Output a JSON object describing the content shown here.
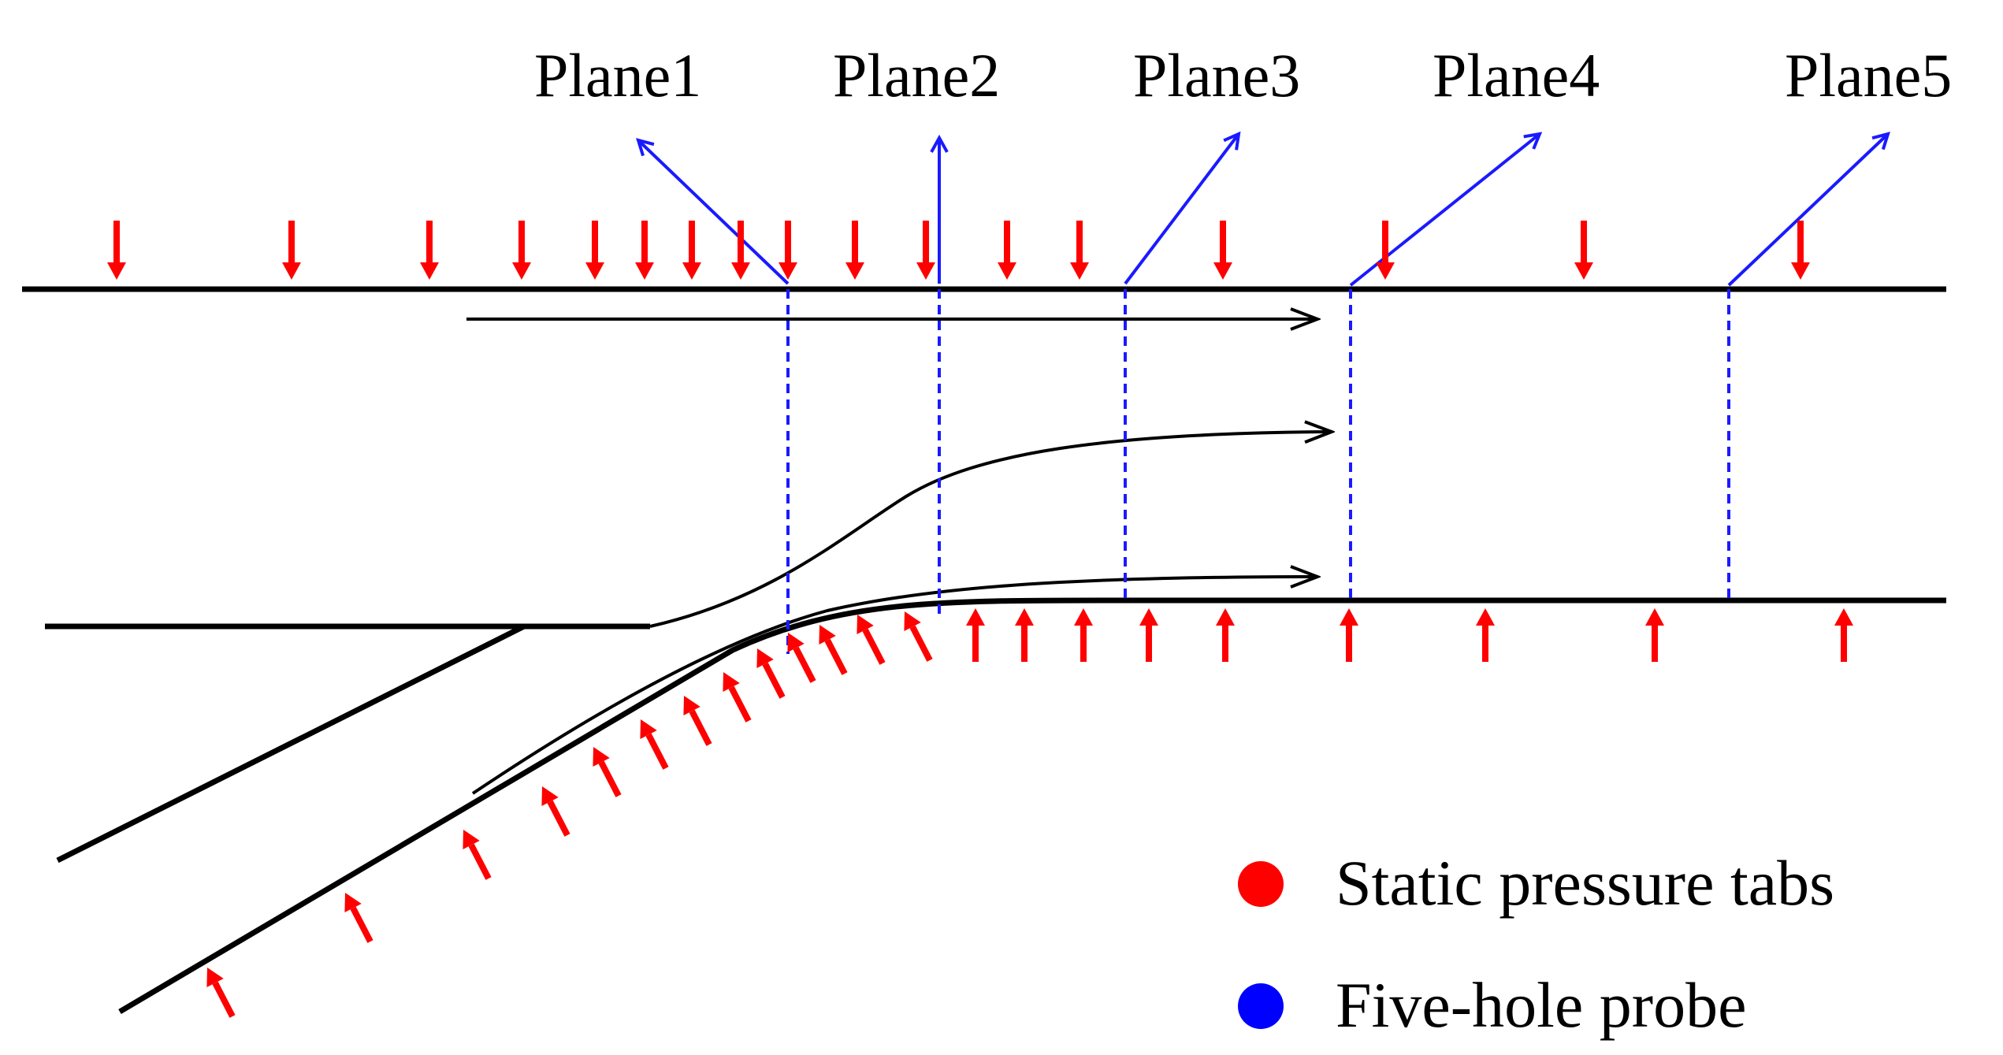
{
  "planes": [
    {
      "id": "plane1",
      "label": "Plane1"
    },
    {
      "id": "plane2",
      "label": "Plane2"
    },
    {
      "id": "plane3",
      "label": "Plane3"
    },
    {
      "id": "plane4",
      "label": "Plane4"
    },
    {
      "id": "plane5",
      "label": "Plane5"
    }
  ],
  "legend": {
    "static": {
      "label": "Static pressure tabs",
      "color": "#ff0000"
    },
    "probe": {
      "label": "Five-hole probe",
      "color": "#0000ff"
    }
  }
}
